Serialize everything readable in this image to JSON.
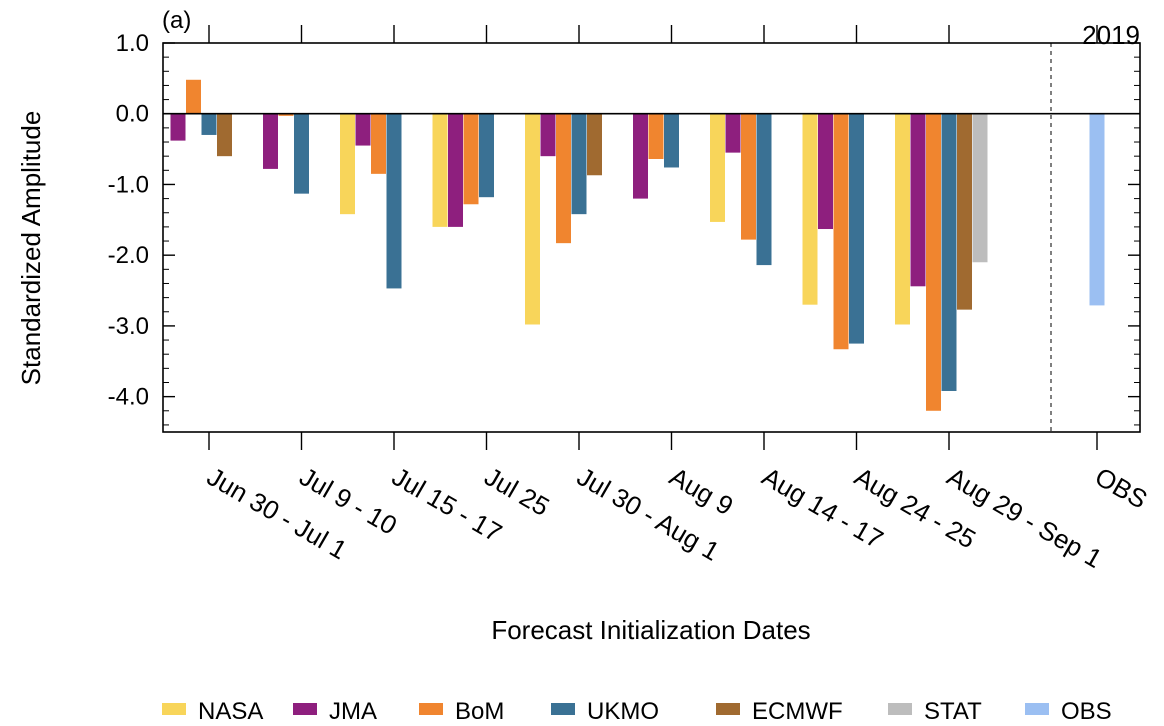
{
  "chart_data": {
    "type": "bar",
    "panel_label": "(a)",
    "year_label": "2019",
    "title": "",
    "xlabel": "Forecast Initialization Dates",
    "ylabel": "Standardized Amplitude",
    "ylim": [
      -4.5,
      1.0
    ],
    "yticks": [
      1.0,
      0.0,
      -1.0,
      -2.0,
      -3.0,
      -4.0
    ],
    "ytick_labels": [
      "1.0",
      "0.0",
      "-1.0",
      "-2.0",
      "-3.0",
      "-4.0"
    ],
    "grid": false,
    "legend_position": "bottom",
    "categories": [
      "Jun 30 - Jul 1",
      "Jul 9 - 10",
      "Jul 15 - 17",
      "Jul 25",
      "Jul 30 - Aug 1",
      "Aug 9",
      "Aug 14 - 17",
      "Aug 24 - 25",
      "Aug 29 - Sep 1",
      "OBS"
    ],
    "series": [
      {
        "name": "NASA",
        "color": "#F8D55A",
        "values": [
          null,
          null,
          -1.42,
          -1.6,
          -2.98,
          null,
          -1.53,
          -2.7,
          -2.98,
          null
        ]
      },
      {
        "name": "JMA",
        "color": "#8E1F7E",
        "values": [
          -0.38,
          -0.78,
          -0.45,
          -1.6,
          -0.6,
          -1.2,
          -0.55,
          -1.63,
          -2.44,
          null
        ]
      },
      {
        "name": "BoM",
        "color": "#F0852F",
        "values": [
          0.48,
          -0.03,
          -0.85,
          -1.28,
          -1.83,
          -0.64,
          -1.78,
          -3.33,
          -4.2,
          null
        ]
      },
      {
        "name": "UKMO",
        "color": "#3A7194",
        "values": [
          -0.3,
          -1.13,
          -2.47,
          -1.18,
          -1.42,
          -0.76,
          -2.14,
          -3.25,
          -3.92,
          null
        ]
      },
      {
        "name": "ECMWF",
        "color": "#A06A30",
        "values": [
          -0.6,
          null,
          null,
          null,
          -0.87,
          null,
          null,
          null,
          -2.77,
          null
        ]
      },
      {
        "name": "STAT",
        "color": "#BDBDBD",
        "values": [
          null,
          null,
          null,
          null,
          null,
          null,
          null,
          null,
          -2.1,
          null
        ]
      },
      {
        "name": "OBS",
        "color": "#9BBFF2",
        "values": [
          null,
          null,
          null,
          null,
          null,
          null,
          null,
          null,
          null,
          -2.71
        ]
      }
    ]
  }
}
